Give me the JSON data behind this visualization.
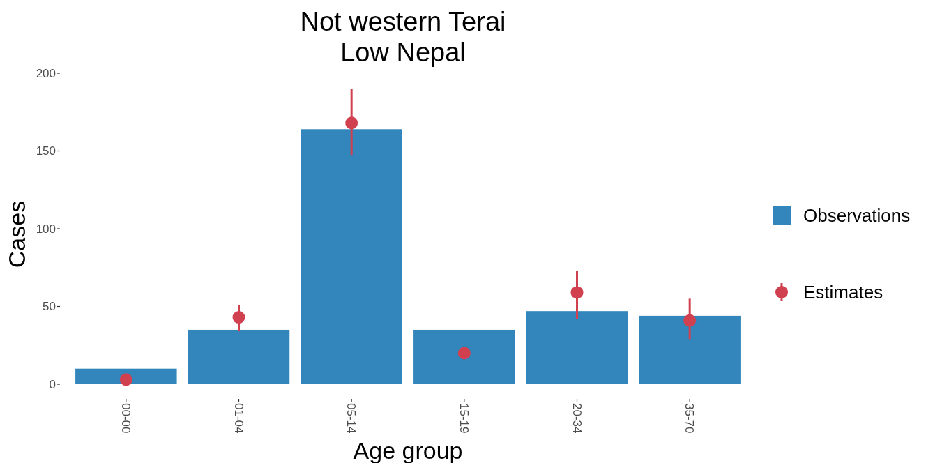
{
  "chart_data": {
    "type": "bar",
    "title": "Not western Terai\nLow Nepal",
    "xlabel": "Age group",
    "ylabel": "Cases",
    "categories": [
      "00-00",
      "01-04",
      "05-14",
      "15-19",
      "20-34",
      "35-70"
    ],
    "series": [
      {
        "name": "Observations",
        "color": "#3286bc",
        "values": [
          10,
          35,
          164,
          35,
          47,
          44
        ]
      },
      {
        "name": "Estimates",
        "type": "scatter",
        "color": "#d1404f",
        "x": [
          "00-00",
          "01-04",
          "05-14",
          "15-19",
          "20-34",
          "35-70"
        ],
        "values": [
          3,
          43,
          168,
          20,
          59,
          41
        ],
        "errors": [
          null,
          [
            34,
            51
          ],
          [
            147,
            190
          ],
          null,
          [
            42,
            73
          ],
          [
            29,
            55
          ]
        ]
      }
    ],
    "ylim": [
      0,
      200
    ],
    "yticks": [
      0,
      50,
      100,
      150,
      200
    ],
    "grid": false,
    "legend": "right",
    "marker": "circle"
  }
}
